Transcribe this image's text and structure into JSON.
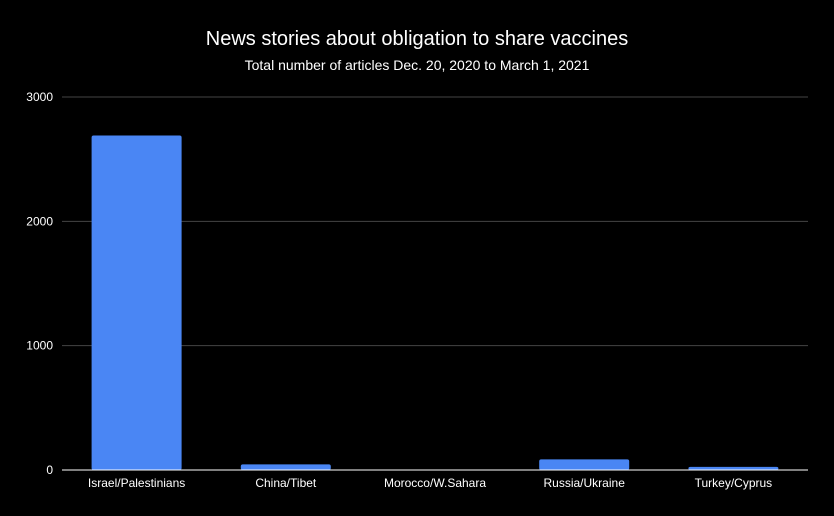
{
  "chart_data": {
    "type": "bar",
    "title": "News stories about obligation to share vaccines",
    "subtitle": "Total number of articles Dec. 20, 2020 to March 1, 2021",
    "xlabel": "",
    "ylabel": "",
    "categories": [
      "Israel/Palestinians",
      "China/Tibet",
      "Morocco/W.Sahara",
      "Russia/Ukraine",
      "Turkey/Cyprus"
    ],
    "values": [
      2690,
      45,
      0,
      85,
      25
    ],
    "ylim": [
      0,
      3000
    ],
    "yticks": [
      "0",
      "1000",
      "2000",
      "3000"
    ],
    "grid": true,
    "legend": "none",
    "colors": {
      "background": "#000000",
      "bar": "#4a86f4",
      "grid": "#444444",
      "axis": "#ffffff",
      "text": "#ffffff"
    }
  }
}
